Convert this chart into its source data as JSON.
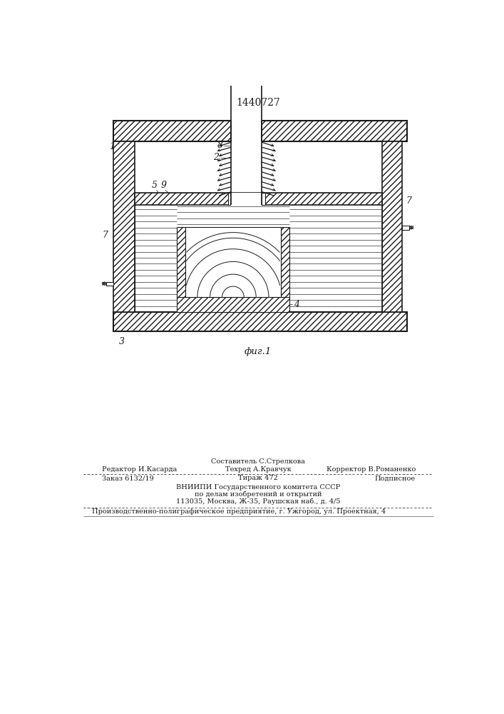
{
  "patent_number": "1440727",
  "fig_label": "фиг.1",
  "footer_editor": "Редактор И.Касарда",
  "footer_sostavitel": "Составитель С.Стрелкова",
  "footer_tehred": "Техред А.Кравчук",
  "footer_korrektor": "Корректор В.Романенко",
  "footer_zakaz": "Заказ 6132/19",
  "footer_tirazh": "Тираж 472",
  "footer_podpisnoe": "Подписное",
  "footer_vniip1": "ВНИИПИ Государственного комитета СССР",
  "footer_vniip2": "по делам изобретений и открытий",
  "footer_vniip3": "113035, Москва, Ж-35, Раушская наб., д. 4/5",
  "footer_proizv": "Производственно-полиграфическое предприятие, г. Ужгород, ул. Проектная, 4"
}
